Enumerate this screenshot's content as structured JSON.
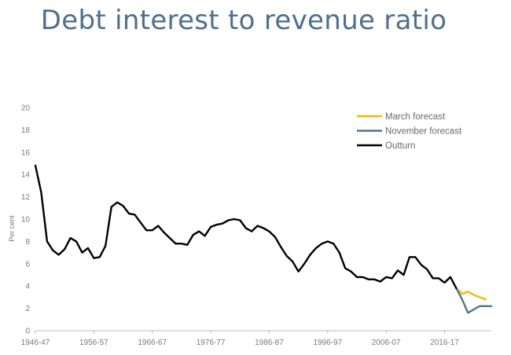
{
  "slide": {
    "title": "Debt interest to revenue ratio"
  },
  "chart_data": {
    "type": "line",
    "title": "Debt interest to revenue ratio",
    "xlabel": "",
    "ylabel": "Per cent",
    "xlim": [
      1946,
      2024
    ],
    "ylim": [
      0,
      20
    ],
    "y_ticks": [
      0,
      2,
      4,
      6,
      8,
      10,
      12,
      14,
      16,
      18,
      20
    ],
    "x_ticks": [
      {
        "value": 1946,
        "label": "1946-47"
      },
      {
        "value": 1956,
        "label": "1956-57"
      },
      {
        "value": 1966,
        "label": "1966-67"
      },
      {
        "value": 1976,
        "label": "1976-77"
      },
      {
        "value": 1986,
        "label": "1986-87"
      },
      {
        "value": 1996,
        "label": "1996-97"
      },
      {
        "value": 2006,
        "label": "2006-07"
      },
      {
        "value": 2016,
        "label": "2016-17"
      }
    ],
    "grid": false,
    "legend_position": "top-right",
    "series": [
      {
        "name": "March forecast",
        "color": "#f5b800",
        "x": [
          2018,
          2019,
          2020,
          2021,
          2022,
          2023
        ],
        "y": [
          3.8,
          3.3,
          3.5,
          3.2,
          3.0,
          2.8
        ]
      },
      {
        "name": "November forecast",
        "color": "#4d7590",
        "x": [
          2018,
          2019,
          2020,
          2021,
          2022,
          2023,
          2024
        ],
        "y": [
          3.8,
          2.8,
          1.6,
          1.9,
          2.2,
          2.2,
          2.2
        ]
      },
      {
        "name": "Outturn",
        "color": "#000000",
        "x": [
          1946,
          1947,
          1948,
          1949,
          1950,
          1951,
          1952,
          1953,
          1954,
          1955,
          1956,
          1957,
          1958,
          1959,
          1960,
          1961,
          1962,
          1963,
          1964,
          1965,
          1966,
          1967,
          1968,
          1969,
          1970,
          1971,
          1972,
          1973,
          1974,
          1975,
          1976,
          1977,
          1978,
          1979,
          1980,
          1981,
          1982,
          1983,
          1984,
          1985,
          1986,
          1987,
          1988,
          1989,
          1990,
          1991,
          1992,
          1993,
          1994,
          1995,
          1996,
          1997,
          1998,
          1999,
          2000,
          2001,
          2002,
          2003,
          2004,
          2005,
          2006,
          2007,
          2008,
          2009,
          2010,
          2011,
          2012,
          2013,
          2014,
          2015,
          2016,
          2017,
          2018
        ],
        "y": [
          14.8,
          12.4,
          8.0,
          7.2,
          6.8,
          7.3,
          8.3,
          8.0,
          7.0,
          7.4,
          6.5,
          6.6,
          7.6,
          11.1,
          11.5,
          11.2,
          10.5,
          10.4,
          9.7,
          9.0,
          9.0,
          9.4,
          8.8,
          8.3,
          7.8,
          7.8,
          7.7,
          8.6,
          8.9,
          8.5,
          9.3,
          9.5,
          9.6,
          9.9,
          10.0,
          9.9,
          9.2,
          8.9,
          9.4,
          9.2,
          8.9,
          8.4,
          7.5,
          6.7,
          6.2,
          5.3,
          6.0,
          6.8,
          7.4,
          7.8,
          8.0,
          7.8,
          7.0,
          5.6,
          5.3,
          4.8,
          4.8,
          4.6,
          4.6,
          4.4,
          4.8,
          4.7,
          5.4,
          5.0,
          6.6,
          6.6,
          5.9,
          5.5,
          4.7,
          4.7,
          4.3,
          4.8,
          3.8
        ]
      }
    ]
  }
}
